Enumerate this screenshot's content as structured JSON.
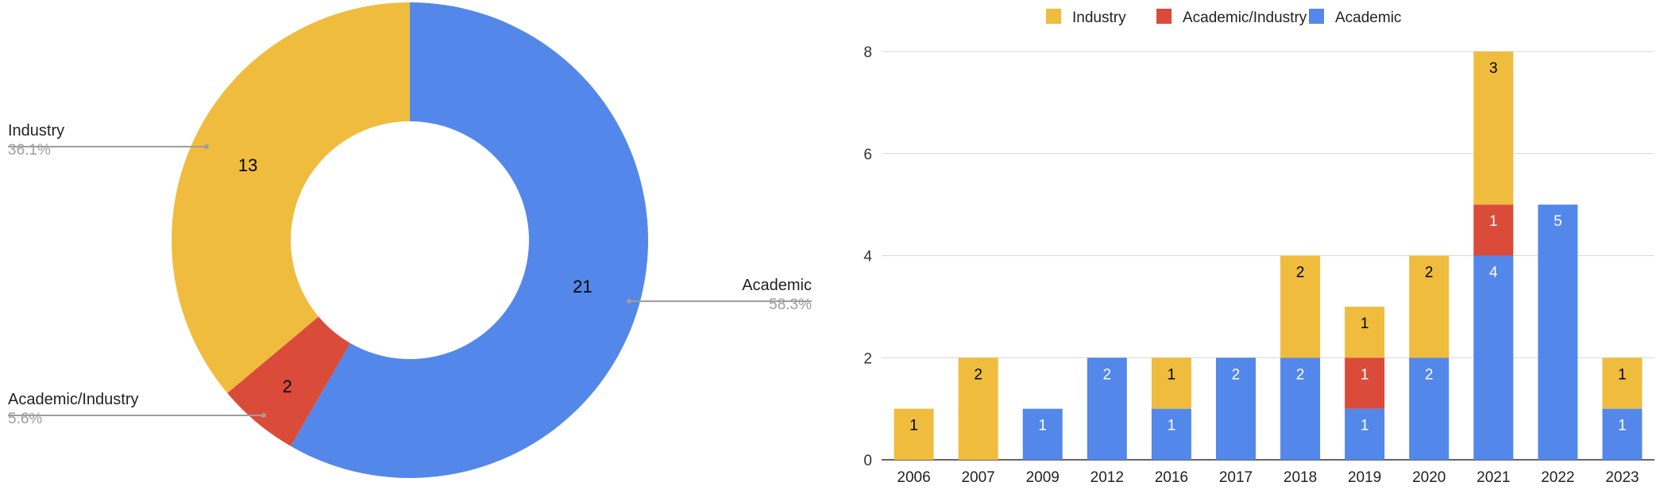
{
  "colors": {
    "industry": "#F0BC3E",
    "academic_industry": "#DB4B3A",
    "academic": "#5487EA",
    "gridline": "#D9D9D9",
    "axis": "#333333",
    "leader": "#9E9E9E",
    "pct_text": "#9E9E9E"
  },
  "chart_data": [
    {
      "type": "pie",
      "donut": true,
      "slices": [
        {
          "label": "Academic",
          "value": 21,
          "percent_label": "58.3%",
          "color_key": "academic"
        },
        {
          "label": "Academic/Industry",
          "value": 2,
          "percent_label": "5.6%",
          "color_key": "academic_industry"
        },
        {
          "label": "Industry",
          "value": 13,
          "percent_label": "36.1%",
          "color_key": "industry"
        }
      ]
    },
    {
      "type": "bar",
      "stacked": true,
      "categories": [
        "2006",
        "2007",
        "2009",
        "2012",
        "2016",
        "2017",
        "2018",
        "2019",
        "2020",
        "2021",
        "2022",
        "2023"
      ],
      "series": [
        {
          "name": "Academic",
          "color_key": "academic",
          "values": [
            0,
            0,
            1,
            2,
            1,
            2,
            2,
            1,
            2,
            4,
            5,
            1
          ]
        },
        {
          "name": "Academic/Industry",
          "color_key": "academic_industry",
          "values": [
            0,
            0,
            0,
            0,
            0,
            0,
            0,
            1,
            0,
            1,
            0,
            0
          ]
        },
        {
          "name": "Industry",
          "color_key": "industry",
          "values": [
            1,
            2,
            0,
            0,
            1,
            0,
            2,
            1,
            2,
            3,
            0,
            1
          ]
        }
      ],
      "legend_order": [
        "Industry",
        "Academic/Industry",
        "Academic"
      ],
      "legend_position": "top",
      "ylim": [
        0,
        8
      ],
      "yticks": [
        0,
        2,
        4,
        6,
        8
      ],
      "grid": true
    }
  ]
}
